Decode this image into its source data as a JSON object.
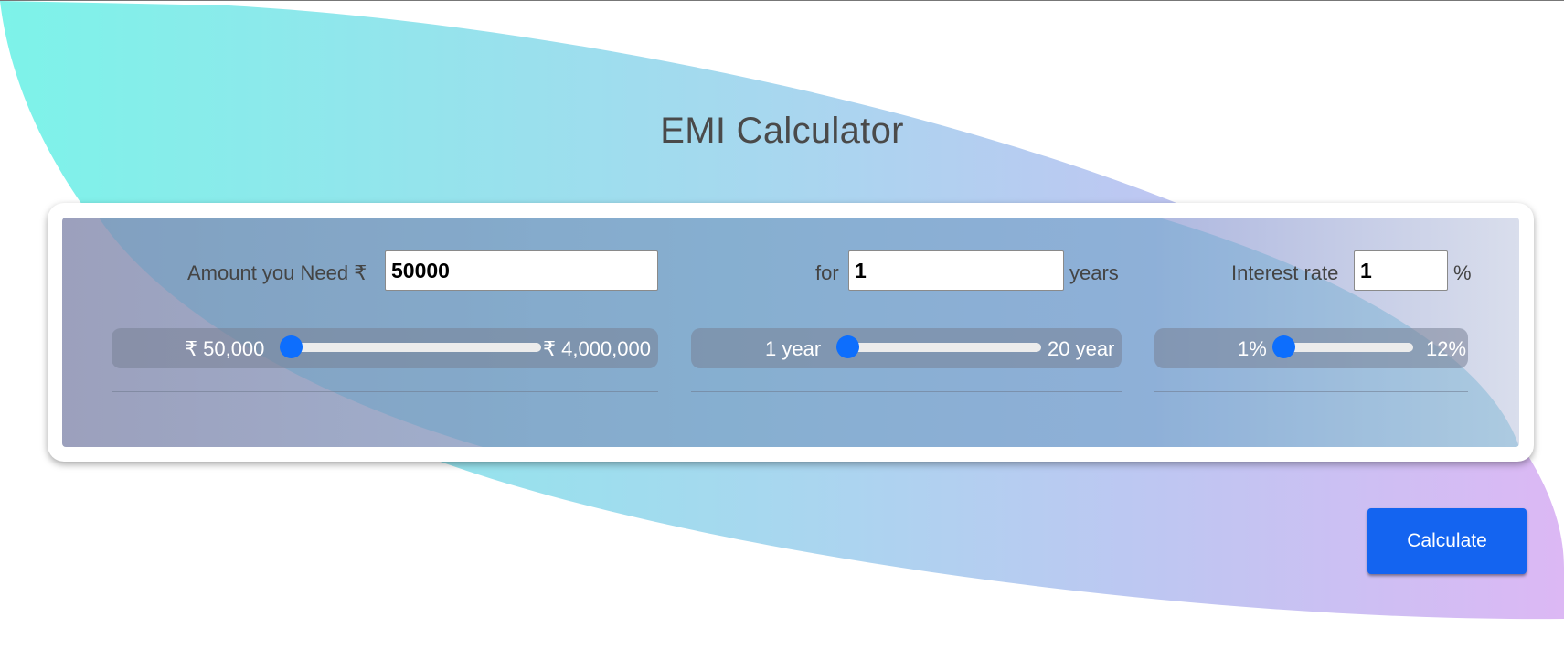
{
  "page_title": "EMI Calculator",
  "colors": {
    "accent": "#0d6efd",
    "button": "#1464f0",
    "gradient_start": "#7df3e9",
    "gradient_end": "#dcb8f4"
  },
  "amount": {
    "label": "Amount you Need ₹",
    "value": "50000",
    "slider_min_label": "₹ 50,000",
    "slider_max_label": "₹ 4,000,000",
    "slider_min": 50000,
    "slider_max": 4000000,
    "slider_value": 50000
  },
  "tenure": {
    "label_prefix": "for",
    "value": "1",
    "label_suffix": "years",
    "slider_min_label": "1 year",
    "slider_max_label": "20 year",
    "slider_min": 1,
    "slider_max": 20,
    "slider_value": 1
  },
  "interest": {
    "label": "Interest rate",
    "value": "1",
    "suffix": "%",
    "slider_min_label": "1%",
    "slider_max_label": "12%",
    "slider_min": 1,
    "slider_max": 12,
    "slider_value": 1
  },
  "calculate_button": {
    "label": "Calculate"
  }
}
